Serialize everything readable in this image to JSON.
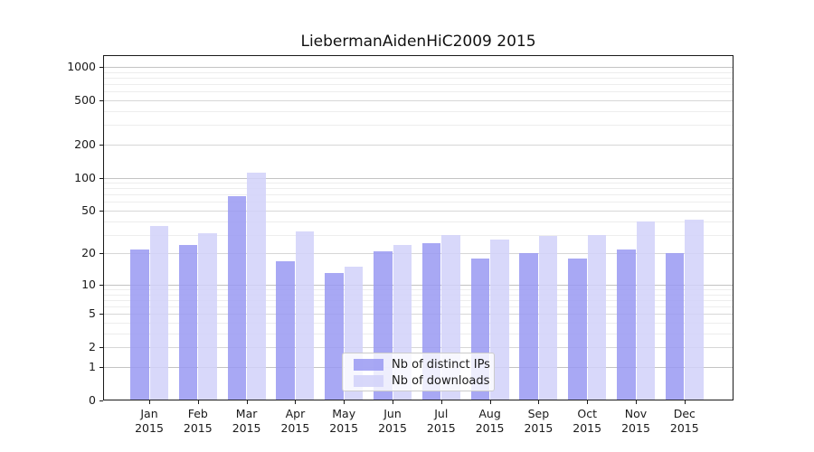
{
  "title": "LiebermanAidenHiC2009 2015",
  "chart_data": {
    "type": "bar",
    "title": "LiebermanAidenHiC2009 2015",
    "categories": [
      "Jan 2015",
      "Feb 2015",
      "Mar 2015",
      "Apr 2015",
      "May 2015",
      "Jun 2015",
      "Jul 2015",
      "Aug 2015",
      "Sep 2015",
      "Oct 2015",
      "Nov 2015",
      "Dec 2015"
    ],
    "series": [
      {
        "name": "Nb of distinct IPs",
        "color": "#9999f2",
        "values": [
          22,
          24,
          68,
          17,
          13,
          21,
          25,
          18,
          20,
          18,
          22,
          20
        ]
      },
      {
        "name": "Nb of downloads",
        "color": "#d1d1f9",
        "values": [
          36,
          31,
          110,
          32,
          15,
          24,
          30,
          27,
          29,
          30,
          40,
          41
        ]
      }
    ],
    "y_scale": "log10(1+v)",
    "y_tick_values": [
      0,
      1,
      2,
      5,
      10,
      20,
      50,
      100,
      200,
      500,
      1000
    ],
    "major_grid_values": [
      1,
      10,
      100,
      1000
    ],
    "minor_grid_values": [
      3,
      4,
      6,
      7,
      8,
      9,
      30,
      40,
      60,
      70,
      80,
      90,
      300,
      400,
      600,
      700,
      800,
      900
    ],
    "ylim": [
      0,
      1300
    ],
    "grid": true,
    "xlabel": "",
    "ylabel": "",
    "legend_position": "lower center"
  },
  "legend": {
    "items": [
      "Nb of distinct IPs",
      "Nb of downloads"
    ]
  },
  "colors": {
    "bar_distinct_ips": "#9999f2",
    "bar_downloads": "#d1d1f9",
    "bar_alpha": 0.85,
    "grid_minor": "#ededed",
    "grid_tick": "#d7d7d7",
    "grid_major": "#c3c3c3",
    "axis": "#1a1a1a",
    "text": "#111111"
  }
}
